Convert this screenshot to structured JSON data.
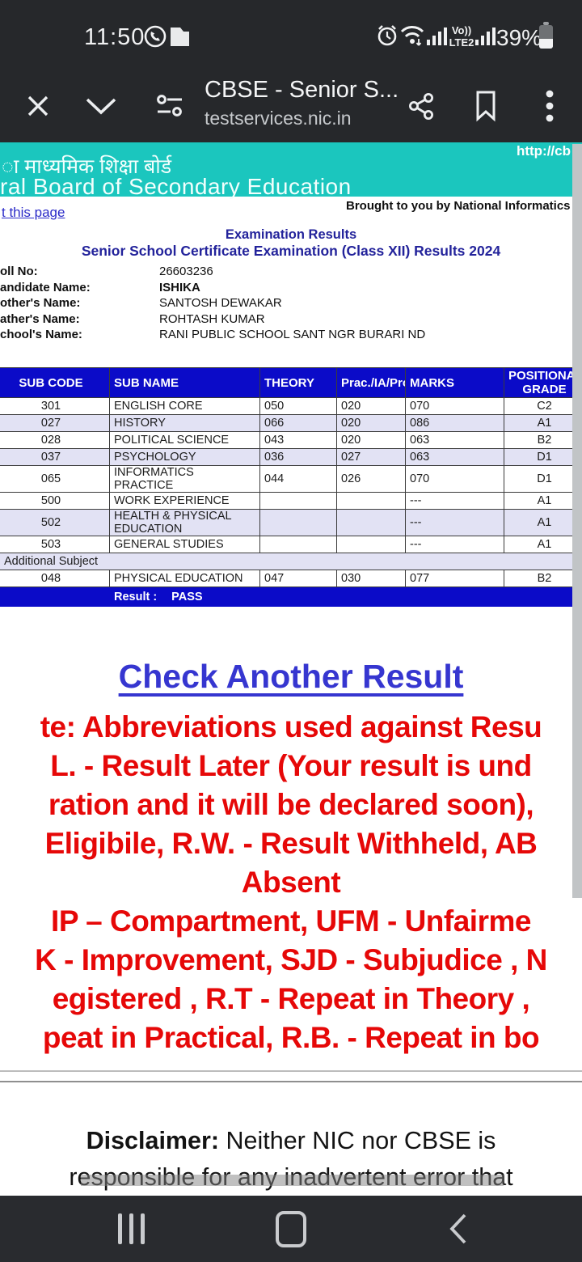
{
  "status_bar": {
    "time": "11:50",
    "battery_percent": "39%",
    "volte_line1": "Vo))",
    "volte_line2": "LTE2",
    "icons": [
      "whatsapp-icon",
      "file-icon",
      "alarm-icon",
      "wifi-icon",
      "signal-icon",
      "signal-icon",
      "battery-icon"
    ]
  },
  "browser": {
    "title": "CBSE - Senior S...",
    "url": "testservices.nic.in",
    "icons": [
      "close-icon",
      "chevron-down-icon",
      "tune-icon",
      "share-icon",
      "bookmark-icon",
      "kebab-menu-icon"
    ]
  },
  "nav_bar": {
    "icons": [
      "recents-icon",
      "home-icon",
      "back-icon"
    ]
  },
  "colors": {
    "accent_teal": "#1BC6BE",
    "table_header_blue": "#0B0BC8",
    "heading_navy": "#23239B",
    "link_blue": "#2B2BC8",
    "note_red": "#E60808",
    "shaded_row": "#E2E2F4"
  },
  "page": {
    "overlay_url": "http://cb",
    "banner": {
      "line_hindi": "ा माध्यमिक शिक्षा बोर्ड",
      "line_english": "ral Board of Secondary Education"
    },
    "print_link": "t this page",
    "brought_by": "Brought to you by National Informatics Ce",
    "heading1": "Examination Results",
    "heading2": "Senior School Certificate Examination (Class XII) Results 2024",
    "info": [
      {
        "label": "oll No:",
        "value": "26603236",
        "bold_value": false
      },
      {
        "label": "andidate Name:",
        "value": "ISHIKA",
        "bold_value": true
      },
      {
        "label": "other's Name:",
        "value": "SANTOSH DEWAKAR",
        "bold_value": false
      },
      {
        "label": "ather's Name:",
        "value": "ROHTASH KUMAR",
        "bold_value": false
      },
      {
        "label": "chool's Name:",
        "value": "RANI PUBLIC SCHOOL SANT NGR BURARI ND",
        "bold_value": false
      }
    ],
    "table": {
      "columns": [
        "SUB CODE",
        "SUB NAME",
        "THEORY",
        "Prac./IA/Proj.",
        "MARKS",
        "POSITIONAL GRADE"
      ],
      "rows": [
        {
          "cells": [
            "301",
            "ENGLISH CORE",
            "050",
            "020",
            "070",
            "C2"
          ],
          "shaded": false
        },
        {
          "cells": [
            "027",
            "HISTORY",
            "066",
            "020",
            "086",
            "A1"
          ],
          "shaded": true
        },
        {
          "cells": [
            "028",
            "POLITICAL SCIENCE",
            "043",
            "020",
            "063",
            "B2"
          ],
          "shaded": false
        },
        {
          "cells": [
            "037",
            "PSYCHOLOGY",
            "036",
            "027",
            "063",
            "D1"
          ],
          "shaded": true
        },
        {
          "cells": [
            "065",
            "INFORMATICS PRACTICE",
            "044",
            "026",
            "070",
            "D1"
          ],
          "shaded": false
        },
        {
          "cells": [
            "500",
            "WORK EXPERIENCE",
            "",
            "",
            "---",
            "A1"
          ],
          "shaded": false
        },
        {
          "cells": [
            "502",
            "HEALTH & PHYSICAL EDUCATION",
            "",
            "",
            "---",
            "A1"
          ],
          "shaded": true
        },
        {
          "cells": [
            "503",
            "GENERAL STUDIES",
            "",
            "",
            "---",
            "A1"
          ],
          "shaded": false
        }
      ],
      "additional_subject_label": "Additional Subject",
      "additional_rows": [
        {
          "cells": [
            "048",
            "PHYSICAL EDUCATION",
            "047",
            "030",
            "077",
            "B2"
          ],
          "shaded": false
        }
      ],
      "result_label": "Result :",
      "result_value": "PASS"
    },
    "check_link": "Check Another Result",
    "note_lines": [
      "te: Abbreviations used against Resu",
      "L. - Result Later (Your result is und",
      "ration and it will be declared soon),",
      "Eligibile, R.W. - Result Withheld, AB",
      "Absent",
      "IP – Compartment, UFM - Unfairme",
      "K - Improvement, SJD - Subjudice , N",
      "egistered , R.T - Repeat in Theory ,",
      "peat in Practical, R.B. - Repeat in bo"
    ],
    "disclaimer": {
      "bold": "Disclaimer:",
      "line1_rest": " Neither NIC nor CBSE is",
      "line2": "responsible for any inadvertent error that"
    }
  }
}
